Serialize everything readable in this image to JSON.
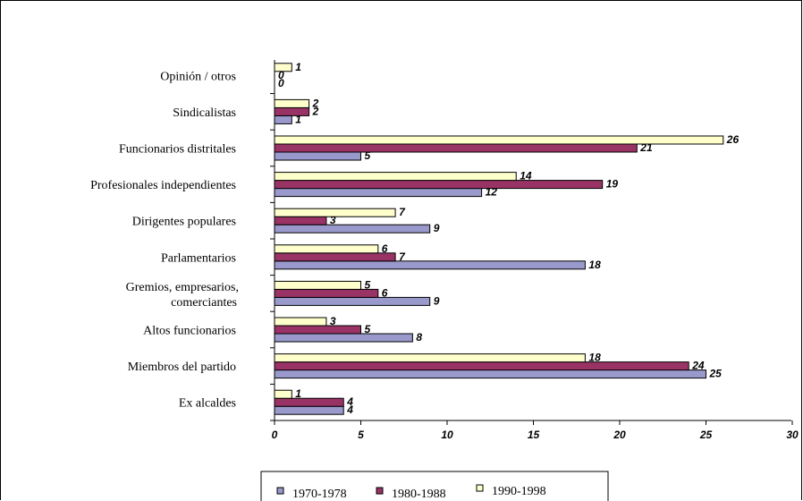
{
  "chart_data": {
    "type": "bar",
    "orientation": "horizontal",
    "categories": [
      "Ex alcaldes",
      "Miembros del partido",
      "Altos funcionarios",
      "Gremios, empresarios, comerciantes",
      "Parlamentarios",
      "Dirigentes populares",
      "Profesionales independientes",
      "Funcionarios distritales",
      "Sindicalistas",
      "Opinión / otros"
    ],
    "series": [
      {
        "name": "1970-1978",
        "color": "#9999cc",
        "values": [
          4,
          25,
          8,
          9,
          18,
          9,
          12,
          5,
          1,
          0
        ]
      },
      {
        "name": "1980-1988",
        "color": "#993366",
        "values": [
          4,
          24,
          5,
          6,
          7,
          3,
          19,
          21,
          2,
          0
        ]
      },
      {
        "name": "1990-1998",
        "color": "#ffffcc",
        "values": [
          1,
          18,
          3,
          5,
          6,
          7,
          14,
          26,
          2,
          1
        ]
      }
    ],
    "xlim": [
      0,
      30
    ],
    "xticks": [
      0,
      5,
      10,
      15,
      20,
      25,
      30
    ],
    "grid": false,
    "legend": "bottom",
    "title": "",
    "xlabel": "",
    "ylabel": ""
  }
}
